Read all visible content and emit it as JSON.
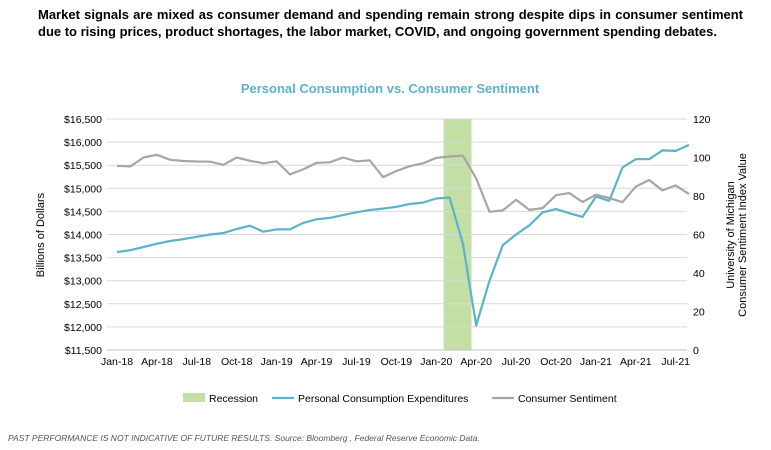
{
  "headline": "Market signals are mixed as consumer demand and spending remain strong despite dips in consumer sentiment due to rising prices, product shortages, the labor market, COVID, and ongoing government spending debates.",
  "footnote": "PAST PERFORMANCE IS NOT INDICATIVE OF FUTURE RESULTS. Source: Bloomberg , Federal Reserve Economic Data.",
  "chart_data": {
    "type": "line",
    "title": "Personal Consumption vs. Consumer Sentiment",
    "ylabel": "Billions of Dollars",
    "y2label": [
      "University of Michigan",
      "Consumer Sentiment Index Value"
    ],
    "ylim": [
      11500,
      16500
    ],
    "y2lim": [
      0,
      120
    ],
    "yticks": [
      "$11,500",
      "$12,000",
      "$12,500",
      "$13,000",
      "$13,500",
      "$14,000",
      "$14,500",
      "$15,000",
      "$15,500",
      "$16,000",
      "$16,500"
    ],
    "y2ticks": [
      "0",
      "20",
      "40",
      "60",
      "80",
      "100",
      "120"
    ],
    "xticks": [
      "Jan-18",
      "Apr-18",
      "Jul-18",
      "Oct-18",
      "Jan-19",
      "Apr-19",
      "Jul-19",
      "Oct-19",
      "Jan-20",
      "Apr-20",
      "Jul-20",
      "Oct-20",
      "Jan-21",
      "Apr-21",
      "Jul-21"
    ],
    "x": [
      "Jan-18",
      "Feb-18",
      "Mar-18",
      "Apr-18",
      "May-18",
      "Jun-18",
      "Jul-18",
      "Aug-18",
      "Sep-18",
      "Oct-18",
      "Nov-18",
      "Dec-18",
      "Jan-19",
      "Feb-19",
      "Mar-19",
      "Apr-19",
      "May-19",
      "Jun-19",
      "Jul-19",
      "Aug-19",
      "Sep-19",
      "Oct-19",
      "Nov-19",
      "Dec-19",
      "Jan-20",
      "Feb-20",
      "Mar-20",
      "Apr-20",
      "May-20",
      "Jun-20",
      "Jul-20",
      "Aug-20",
      "Sep-20",
      "Oct-20",
      "Nov-20",
      "Dec-20",
      "Jan-21",
      "Feb-21",
      "Mar-21",
      "Apr-21",
      "May-21",
      "Jun-21",
      "Jul-21",
      "Aug-21"
    ],
    "recession": [
      "Feb-20",
      "Apr-20"
    ],
    "series": [
      {
        "name": "Personal Consumption Expenditures",
        "axis": "left",
        "color": "#5BB3C9",
        "values": [
          13620,
          13660,
          13730,
          13800,
          13860,
          13900,
          13950,
          14000,
          14030,
          14120,
          14190,
          14060,
          14110,
          14110,
          14250,
          14330,
          14360,
          14420,
          14480,
          14530,
          14560,
          14600,
          14660,
          14690,
          14780,
          14800,
          13800,
          12030,
          13000,
          13770,
          14000,
          14200,
          14480,
          14550,
          14460,
          14380,
          14820,
          14730,
          15450,
          15630,
          15630,
          15820,
          15810,
          15940
        ]
      },
      {
        "name": "Consumer Sentiment",
        "axis": "right",
        "color": "#A6A6A6",
        "values": [
          95.7,
          95.4,
          100.0,
          101.4,
          98.8,
          98.2,
          97.9,
          97.8,
          96.2,
          100.0,
          98.3,
          97.0,
          98.0,
          91.2,
          93.8,
          97.2,
          97.5,
          100.0,
          98.0,
          98.5,
          89.8,
          93.0,
          95.5,
          97.0,
          99.8,
          100.5,
          101.0,
          89.1,
          71.8,
          72.5,
          78.0,
          72.8,
          73.7,
          80.4,
          81.5,
          76.9,
          80.7,
          79.0,
          76.8,
          84.9,
          88.3,
          82.9,
          85.5,
          81.0
        ]
      }
    ],
    "legend": {
      "position": "bottom",
      "items": [
        {
          "label": "Recession",
          "color": "#C3DFA6",
          "kind": "box"
        },
        {
          "label": "Personal Consumption Expenditures",
          "color": "#5BB3C9",
          "kind": "line"
        },
        {
          "label": "Consumer Sentiment",
          "color": "#A6A6A6",
          "kind": "line"
        }
      ]
    },
    "grid": true
  }
}
